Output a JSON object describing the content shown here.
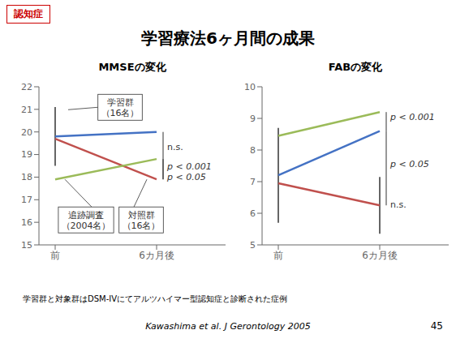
{
  "title": "学習療法6ヶ月間の成果",
  "annotations": [
    {
      "text": "認知症",
      "color": "#CC0000"
    },
    {
      "text": "学習群と対象群はDSM-IVにてアルツハイマー型認知症と診断された症例"
    },
    {
      "text": "Kawashima et al. J Gerontology 2005"
    },
    {
      "text": "45"
    }
  ],
  "chart_data": [
    {
      "type": "line",
      "title": "MMSEの変化",
      "categories": [
        "前",
        "6カ月後"
      ],
      "series": [
        {
          "color": "#4472C4",
          "values": [
            19.8,
            20.0
          ],
          "errors": [
            1.3,
            null
          ]
        },
        {
          "color": "#C0504D",
          "values": [
            19.7,
            17.9
          ]
        },
        {
          "color": "#9BBB59",
          "values": [
            17.9,
            18.8
          ]
        }
      ],
      "ylim": [
        15,
        22
      ],
      "yticks": [
        15,
        16,
        17,
        18,
        19,
        20,
        21,
        22
      ],
      "annotations": [
        {
          "text": "n.s."
        },
        {
          "text": "p < 0.001"
        },
        {
          "text": "p < 0.05"
        },
        {
          "text": "学習群\n（16名）"
        },
        {
          "text": "追跡調査\n（2004名）"
        },
        {
          "text": "対照群\n（16名）"
        }
      ]
    },
    {
      "type": "line",
      "title": "FABの変化",
      "categories": [
        "前",
        "6カ月後"
      ],
      "series": [
        {
          "color": "#4472C4",
          "values": [
            7.2,
            8.6
          ],
          "errors": [
            1.5,
            null
          ]
        },
        {
          "color": "#C0504D",
          "values": [
            6.95,
            6.25
          ],
          "errors": [
            null,
            0.9
          ]
        },
        {
          "color": "#9BBB59",
          "values": [
            8.45,
            9.2
          ]
        }
      ],
      "ylim": [
        5,
        10
      ],
      "yticks": [
        5,
        6,
        7,
        8,
        9,
        10
      ],
      "annotations": [
        {
          "text": "p < 0.001"
        },
        {
          "text": "p < 0.05"
        },
        {
          "text": "n.s."
        }
      ]
    }
  ]
}
